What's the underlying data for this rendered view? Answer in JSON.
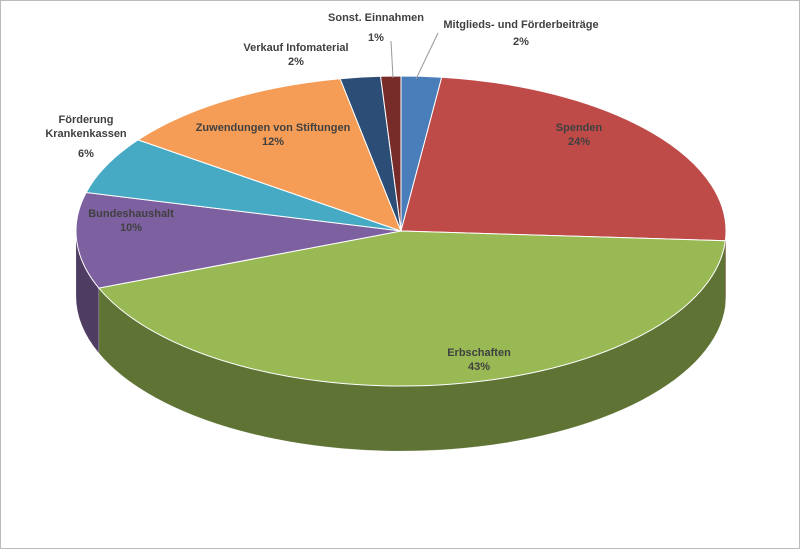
{
  "chart_data": {
    "type": "pie3d",
    "categories": [
      "Mitglieds- und Förderbeiträge",
      "Spenden",
      "Erbschaften",
      "Bundeshaushalt",
      "Förderung Krankenkassen",
      "Zuwendungen von Stiftungen",
      "Verkauf Infomaterial",
      "Sonst. Einnahmen"
    ],
    "values": [
      2,
      24,
      43,
      10,
      6,
      12,
      2,
      1
    ],
    "value_labels": [
      "2%",
      "24%",
      "43%",
      "10%",
      "6%",
      "12%",
      "2%",
      "1%"
    ],
    "colors": [
      "#4a7ebb",
      "#be4b48",
      "#98b954",
      "#7d60a0",
      "#46aac5",
      "#f59d56",
      "#2c4d75",
      "#772c2a"
    ]
  }
}
